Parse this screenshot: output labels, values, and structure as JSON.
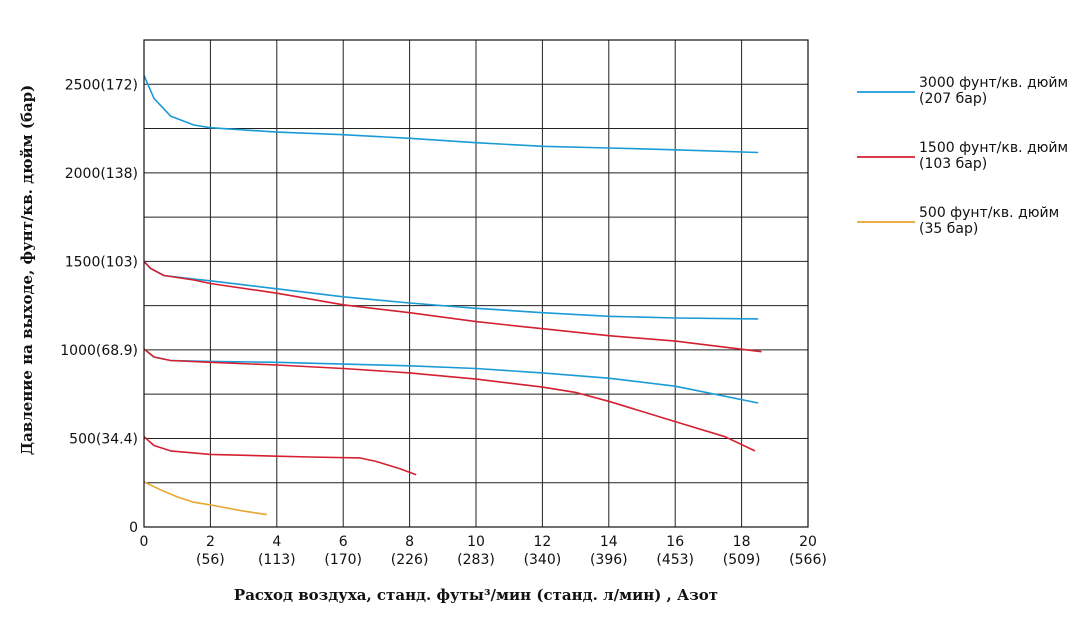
{
  "chart_data": {
    "type": "line",
    "title": "",
    "xlabel": "Расход воздуха, станд. футы³/мин (станд. л/мин) , Азот",
    "ylabel": "Давление на выходе, фунт/кв. дюйм (бар)",
    "xlim": [
      0,
      20
    ],
    "ylim": [
      0,
      2750
    ],
    "grid": true,
    "legend_position": "right",
    "x_ticks": [
      {
        "value": 0,
        "label": "0",
        "sub": ""
      },
      {
        "value": 2,
        "label": "2",
        "sub": "(56)"
      },
      {
        "value": 4,
        "label": "4",
        "sub": "(113)"
      },
      {
        "value": 6,
        "label": "6",
        "sub": "(170)"
      },
      {
        "value": 8,
        "label": "8",
        "sub": "(226)"
      },
      {
        "value": 10,
        "label": "10",
        "sub": "(283)"
      },
      {
        "value": 12,
        "label": "12",
        "sub": "(340)"
      },
      {
        "value": 14,
        "label": "14",
        "sub": "(396)"
      },
      {
        "value": 16,
        "label": "16",
        "sub": "(453)"
      },
      {
        "value": 18,
        "label": "18",
        "sub": "(509)"
      },
      {
        "value": 20,
        "label": "20",
        "sub": "(566)"
      }
    ],
    "y_ticks": [
      {
        "value": 0,
        "label": "0"
      },
      {
        "value": 500,
        "label": "500(34.4)"
      },
      {
        "value": 1000,
        "label": "1000(68.9)"
      },
      {
        "value": 1500,
        "label": "1500(103)"
      },
      {
        "value": 2000,
        "label": "2000(138)"
      },
      {
        "value": 2500,
        "label": "2500(172)"
      }
    ],
    "y_gridlines": [
      250,
      500,
      750,
      1000,
      1250,
      1500,
      1750,
      2000,
      2250,
      2500
    ],
    "legend": [
      {
        "label": "3000 фунт/кв. дюйм",
        "sub": "(207 бар)",
        "color": "#1a9ad6"
      },
      {
        "label": "1500 фунт/кв. дюйм",
        "sub": "(103 бар)",
        "color": "#d42030"
      },
      {
        "label": "500 фунт/кв. дюйм",
        "sub": "(35 бар)",
        "color": "#e8a530"
      }
    ],
    "series": [
      {
        "legend_index": 0,
        "color": "#1a9ad6",
        "points": [
          [
            0,
            2550
          ],
          [
            0.3,
            2420
          ],
          [
            0.8,
            2320
          ],
          [
            1.5,
            2270
          ],
          [
            2,
            2255
          ],
          [
            4,
            2230
          ],
          [
            6,
            2215
          ],
          [
            8,
            2195
          ],
          [
            10,
            2170
          ],
          [
            12,
            2150
          ],
          [
            14,
            2140
          ],
          [
            16,
            2130
          ],
          [
            18.5,
            2115
          ]
        ]
      },
      {
        "legend_index": 0,
        "color": "#1a9ad6",
        "points": [
          [
            0,
            1500
          ],
          [
            0.2,
            1460
          ],
          [
            0.6,
            1420
          ],
          [
            1.5,
            1400
          ],
          [
            2,
            1390
          ],
          [
            4,
            1345
          ],
          [
            6,
            1300
          ],
          [
            8,
            1265
          ],
          [
            10,
            1235
          ],
          [
            12,
            1210
          ],
          [
            14,
            1190
          ],
          [
            16,
            1180
          ],
          [
            18.5,
            1175
          ]
        ]
      },
      {
        "legend_index": 0,
        "color": "#1a9ad6",
        "points": [
          [
            0,
            1005
          ],
          [
            0.3,
            960
          ],
          [
            0.8,
            940
          ],
          [
            2,
            935
          ],
          [
            4,
            930
          ],
          [
            6,
            920
          ],
          [
            8,
            910
          ],
          [
            10,
            895
          ],
          [
            12,
            870
          ],
          [
            14,
            840
          ],
          [
            16,
            795
          ],
          [
            18.5,
            700
          ]
        ]
      },
      {
        "legend_index": 1,
        "color": "#d42030",
        "points": [
          [
            0,
            1500
          ],
          [
            0.2,
            1460
          ],
          [
            0.6,
            1420
          ],
          [
            1.5,
            1395
          ],
          [
            2,
            1375
          ],
          [
            4,
            1320
          ],
          [
            6,
            1255
          ],
          [
            8,
            1210
          ],
          [
            10,
            1160
          ],
          [
            12,
            1120
          ],
          [
            14,
            1080
          ],
          [
            16,
            1050
          ],
          [
            18.6,
            990
          ]
        ]
      },
      {
        "legend_index": 1,
        "color": "#d42030",
        "points": [
          [
            0,
            1005
          ],
          [
            0.3,
            960
          ],
          [
            0.8,
            940
          ],
          [
            2,
            930
          ],
          [
            4,
            915
          ],
          [
            6,
            895
          ],
          [
            8,
            870
          ],
          [
            10,
            835
          ],
          [
            12,
            790
          ],
          [
            13,
            760
          ],
          [
            14,
            710
          ],
          [
            16,
            595
          ],
          [
            17.5,
            510
          ],
          [
            18.4,
            430
          ]
        ]
      },
      {
        "legend_index": 1,
        "color": "#d42030",
        "points": [
          [
            0,
            510
          ],
          [
            0.3,
            460
          ],
          [
            0.8,
            430
          ],
          [
            2,
            410
          ],
          [
            4,
            400
          ],
          [
            5,
            395
          ],
          [
            6.5,
            390
          ],
          [
            7,
            370
          ],
          [
            7.7,
            330
          ],
          [
            8.2,
            295
          ]
        ]
      },
      {
        "legend_index": 2,
        "color": "#e8a530",
        "points": [
          [
            0,
            255
          ],
          [
            0.5,
            210
          ],
          [
            1,
            170
          ],
          [
            1.5,
            140
          ],
          [
            2,
            125
          ],
          [
            3,
            90
          ],
          [
            3.7,
            70
          ]
        ]
      }
    ]
  }
}
